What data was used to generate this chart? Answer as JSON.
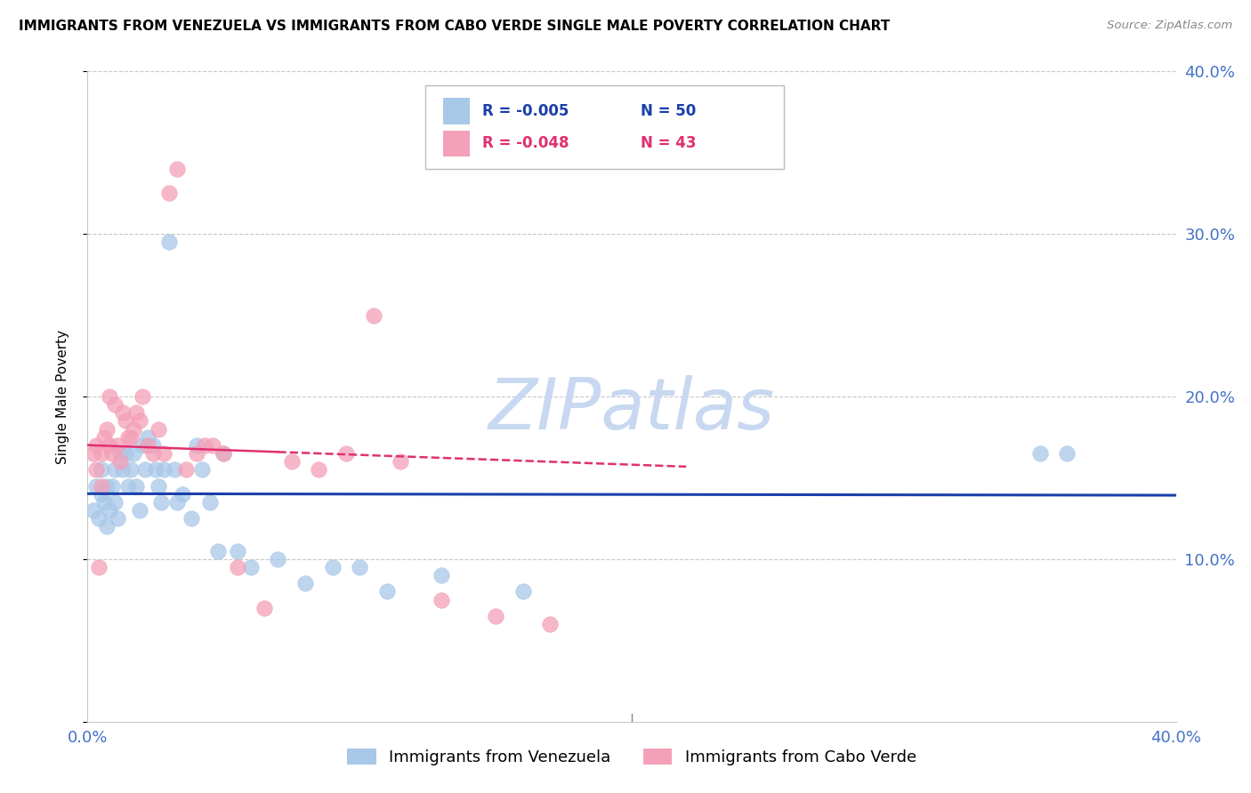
{
  "title": "IMMIGRANTS FROM VENEZUELA VS IMMIGRANTS FROM CABO VERDE SINGLE MALE POVERTY CORRELATION CHART",
  "source": "Source: ZipAtlas.com",
  "ylabel": "Single Male Poverty",
  "xlim": [
    0.0,
    0.4
  ],
  "ylim": [
    0.0,
    0.4
  ],
  "yticks": [
    0.0,
    0.1,
    0.2,
    0.3,
    0.4
  ],
  "ytick_labels": [
    "",
    "10.0%",
    "20.0%",
    "30.0%",
    "40.0%"
  ],
  "xticks": [
    0.0,
    0.05,
    0.1,
    0.15,
    0.2,
    0.25,
    0.3,
    0.35,
    0.4
  ],
  "xtick_labels": [
    "0.0%",
    "",
    "",
    "",
    "",
    "",
    "",
    "",
    "40.0%"
  ],
  "blue_color": "#a8c8e8",
  "pink_color": "#f4a0b8",
  "blue_line_color": "#1a3faa",
  "pink_line_color": "#e03070",
  "legend_r1": "-0.005",
  "legend_n1": "50",
  "legend_r2": "-0.048",
  "legend_n2": "43",
  "legend_label1": "Immigrants from Venezuela",
  "legend_label2": "Immigrants from Cabo Verde",
  "watermark": "ZIPatlas",
  "watermark_color": "#c8d8f0",
  "title_fontsize": 11,
  "axis_label_color": "#4472c4",
  "grid_color": "#c8c8c8",
  "blue_scatter_x": [
    0.002,
    0.003,
    0.004,
    0.005,
    0.005,
    0.006,
    0.007,
    0.007,
    0.008,
    0.009,
    0.01,
    0.01,
    0.011,
    0.012,
    0.013,
    0.014,
    0.015,
    0.016,
    0.017,
    0.018,
    0.019,
    0.02,
    0.021,
    0.022,
    0.024,
    0.025,
    0.026,
    0.027,
    0.028,
    0.03,
    0.032,
    0.033,
    0.035,
    0.038,
    0.04,
    0.042,
    0.045,
    0.048,
    0.05,
    0.055,
    0.06,
    0.07,
    0.08,
    0.09,
    0.1,
    0.11,
    0.13,
    0.16,
    0.35,
    0.36
  ],
  "blue_scatter_y": [
    0.13,
    0.145,
    0.125,
    0.14,
    0.155,
    0.135,
    0.12,
    0.145,
    0.13,
    0.145,
    0.155,
    0.135,
    0.125,
    0.165,
    0.155,
    0.165,
    0.145,
    0.155,
    0.165,
    0.145,
    0.13,
    0.17,
    0.155,
    0.175,
    0.17,
    0.155,
    0.145,
    0.135,
    0.155,
    0.295,
    0.155,
    0.135,
    0.14,
    0.125,
    0.17,
    0.155,
    0.135,
    0.105,
    0.165,
    0.105,
    0.095,
    0.1,
    0.085,
    0.095,
    0.095,
    0.08,
    0.09,
    0.08,
    0.165,
    0.165
  ],
  "pink_scatter_x": [
    0.002,
    0.003,
    0.003,
    0.004,
    0.005,
    0.005,
    0.006,
    0.007,
    0.008,
    0.008,
    0.009,
    0.01,
    0.011,
    0.012,
    0.013,
    0.014,
    0.015,
    0.016,
    0.017,
    0.018,
    0.019,
    0.02,
    0.022,
    0.024,
    0.026,
    0.028,
    0.03,
    0.033,
    0.036,
    0.04,
    0.043,
    0.046,
    0.05,
    0.055,
    0.065,
    0.075,
    0.085,
    0.095,
    0.105,
    0.115,
    0.13,
    0.15,
    0.17
  ],
  "pink_scatter_y": [
    0.165,
    0.17,
    0.155,
    0.095,
    0.165,
    0.145,
    0.175,
    0.18,
    0.2,
    0.17,
    0.165,
    0.195,
    0.17,
    0.16,
    0.19,
    0.185,
    0.175,
    0.175,
    0.18,
    0.19,
    0.185,
    0.2,
    0.17,
    0.165,
    0.18,
    0.165,
    0.325,
    0.34,
    0.155,
    0.165,
    0.17,
    0.17,
    0.165,
    0.095,
    0.07,
    0.16,
    0.155,
    0.165,
    0.25,
    0.16,
    0.075,
    0.065,
    0.06
  ]
}
